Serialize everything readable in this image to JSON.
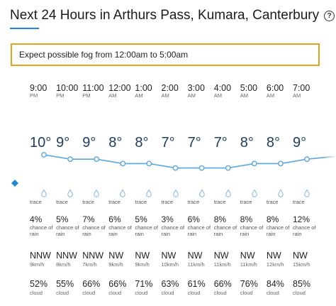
{
  "header": {
    "title": "Next 24 Hours in Arthurs Pass, Kumara, Canterbury",
    "help_label": "?"
  },
  "alert": {
    "text": "Expect possible fog from 12:00am to 5:00am"
  },
  "nav": {
    "prev_icon": "chevron-left-icon",
    "prev_label": "◆"
  },
  "colors": {
    "accent": "#1e88d6",
    "alert_border": "#e5a31b",
    "temp_text": "#1f3d63",
    "line": "#5aa6df"
  },
  "hours": [
    {
      "time": "9:00",
      "ampm": "PM",
      "temp": "10°",
      "temp_value": 10,
      "rain": "trace",
      "rain_chance": "4%",
      "wind_dir": "NNW",
      "wind_speed": "9km/h",
      "cloud": "52%"
    },
    {
      "time": "10:00",
      "ampm": "PM",
      "temp": "9°",
      "temp_value": 9,
      "rain": "trace",
      "rain_chance": "5%",
      "wind_dir": "NNW",
      "wind_speed": "8km/h",
      "cloud": "55%"
    },
    {
      "time": "11:00",
      "ampm": "PM",
      "temp": "9°",
      "temp_value": 9,
      "rain": "trace",
      "rain_chance": "7%",
      "wind_dir": "NNW",
      "wind_speed": "7km/h",
      "cloud": "66%"
    },
    {
      "time": "12:00",
      "ampm": "AM",
      "temp": "8°",
      "temp_value": 8,
      "rain": "trace",
      "rain_chance": "6%",
      "wind_dir": "NW",
      "wind_speed": "9km/h",
      "cloud": "66%"
    },
    {
      "time": "1:00",
      "ampm": "AM",
      "temp": "8°",
      "temp_value": 8,
      "rain": "trace",
      "rain_chance": "5%",
      "wind_dir": "NW",
      "wind_speed": "9km/h",
      "cloud": "71%"
    },
    {
      "time": "2:00",
      "ampm": "AM",
      "temp": "7°",
      "temp_value": 7,
      "rain": "trace",
      "rain_chance": "3%",
      "wind_dir": "NW",
      "wind_speed": "10km/h",
      "cloud": "63%"
    },
    {
      "time": "3:00",
      "ampm": "AM",
      "temp": "7°",
      "temp_value": 7,
      "rain": "trace",
      "rain_chance": "6%",
      "wind_dir": "NW",
      "wind_speed": "11km/h",
      "cloud": "61%"
    },
    {
      "time": "4:00",
      "ampm": "AM",
      "temp": "7°",
      "temp_value": 7,
      "rain": "trace",
      "rain_chance": "8%",
      "wind_dir": "NW",
      "wind_speed": "11km/h",
      "cloud": "66%"
    },
    {
      "time": "5:00",
      "ampm": "AM",
      "temp": "8°",
      "temp_value": 8,
      "rain": "trace",
      "rain_chance": "8%",
      "wind_dir": "NW",
      "wind_speed": "11km/h",
      "cloud": "76%"
    },
    {
      "time": "6:00",
      "ampm": "AM",
      "temp": "8°",
      "temp_value": 8,
      "rain": "trace",
      "rain_chance": "8%",
      "wind_dir": "NW",
      "wind_speed": "12km/h",
      "cloud": "84%"
    },
    {
      "time": "7:00",
      "ampm": "AM",
      "temp": "9°",
      "temp_value": 9,
      "rain": "trace",
      "rain_chance": "12%",
      "wind_dir": "NW",
      "wind_speed": "15km/h",
      "cloud": "85%"
    }
  ],
  "labels": {
    "chance_of_rain": "chance of rain",
    "cloud": "cloud"
  }
}
